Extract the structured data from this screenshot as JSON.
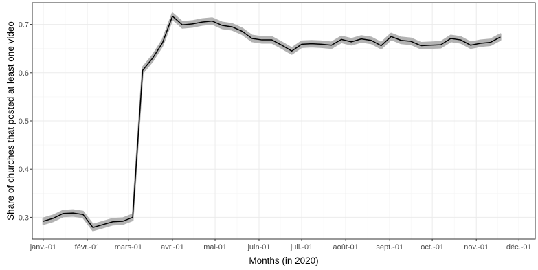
{
  "chart_data": {
    "type": "line",
    "xlabel": "Months (in 2020)",
    "ylabel": "Share of churches that posted at least one video",
    "x_ticks": [
      {
        "label": "janv.-01",
        "week": 0
      },
      {
        "label": "févr.-01",
        "week": 4.43
      },
      {
        "label": "mars-01",
        "week": 8.57
      },
      {
        "label": "avr.-01",
        "week": 13
      },
      {
        "label": "mai-01",
        "week": 17.29
      },
      {
        "label": "juin-01",
        "week": 21.71
      },
      {
        "label": "juil.-01",
        "week": 26
      },
      {
        "label": "août-01",
        "week": 30.43
      },
      {
        "label": "sept.-01",
        "week": 34.86
      },
      {
        "label": "oct.-01",
        "week": 39.14
      },
      {
        "label": "nov.-01",
        "week": 43.57
      },
      {
        "label": "déc.-01",
        "week": 47.86
      }
    ],
    "y_ticks": [
      0.3,
      0.4,
      0.5,
      0.6,
      0.7
    ],
    "xlim": [
      -1.1,
      49.5
    ],
    "ylim": [
      0.255,
      0.745
    ],
    "ci_color": "#b3b3b3",
    "line_color": "#000000",
    "series": [
      {
        "values": [
          0.292,
          0.298,
          0.308,
          0.309,
          0.306,
          0.279,
          0.285,
          0.291,
          0.292,
          0.3,
          0.605,
          0.63,
          0.662,
          0.717,
          0.699,
          0.701,
          0.705,
          0.707,
          0.698,
          0.695,
          0.686,
          0.671,
          0.668,
          0.668,
          0.657,
          0.645,
          0.659,
          0.66,
          0.659,
          0.657,
          0.669,
          0.664,
          0.67,
          0.667,
          0.656,
          0.675,
          0.667,
          0.665,
          0.656,
          0.657,
          0.658,
          0.671,
          0.668,
          0.657,
          0.661,
          0.663,
          0.674
        ],
        "ci_halfwidth": 0.006
      }
    ]
  }
}
